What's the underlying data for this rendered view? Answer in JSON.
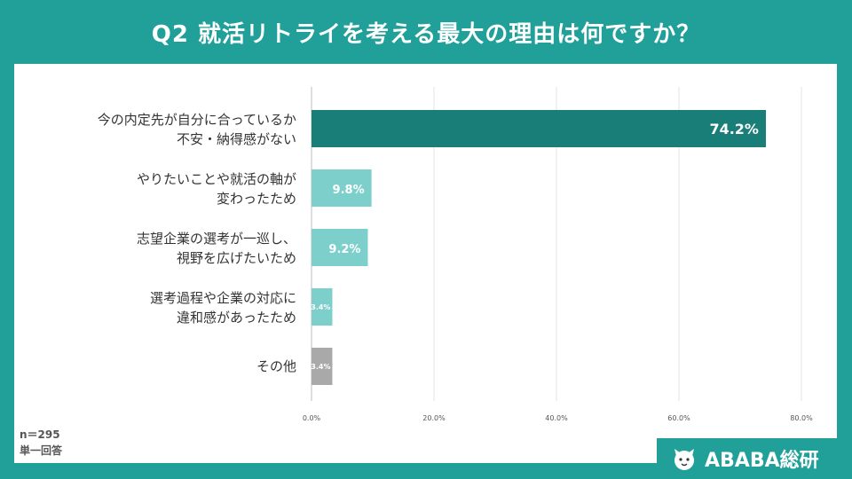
{
  "title": "Q2  就活リトライを考える最大の理由は何ですか？",
  "footnote": {
    "n": "n＝295",
    "type": "単一回答"
  },
  "logo": {
    "icon": "ababa-mascot-icon",
    "text": "ABABA総研"
  },
  "colors": {
    "background": "#21a09a",
    "bar_primary": "#197d78",
    "bar_secondary": "#7ccfcb",
    "bar_other": "#a9a9a9",
    "grid": "#e3e3e3"
  },
  "chart_data": {
    "type": "bar",
    "orientation": "horizontal",
    "categories": [
      [
        "今の内定先が自分に合っているか",
        "不安・納得感がない"
      ],
      [
        "やりたいことや就活の軸が",
        "変わったため"
      ],
      [
        "志望企業の選考が一巡し、",
        "視野を広げたいため"
      ],
      [
        "選考過程や企業の対応に",
        "違和感があったため"
      ],
      [
        "その他"
      ]
    ],
    "values": [
      74.2,
      9.8,
      9.2,
      3.4,
      3.4
    ],
    "value_labels": [
      "74.2%",
      "9.8%",
      "9.2%",
      "3.4%",
      "3.4%"
    ],
    "bar_colors": [
      "#197d78",
      "#7ccfcb",
      "#7ccfcb",
      "#7ccfcb",
      "#a9a9a9"
    ],
    "xlim": [
      0,
      80
    ],
    "xticks": [
      0,
      20,
      40,
      60,
      80
    ],
    "xtick_labels": [
      "0.0%",
      "20.0%",
      "40.0%",
      "60.0%",
      "80.0%"
    ],
    "grid": true
  }
}
